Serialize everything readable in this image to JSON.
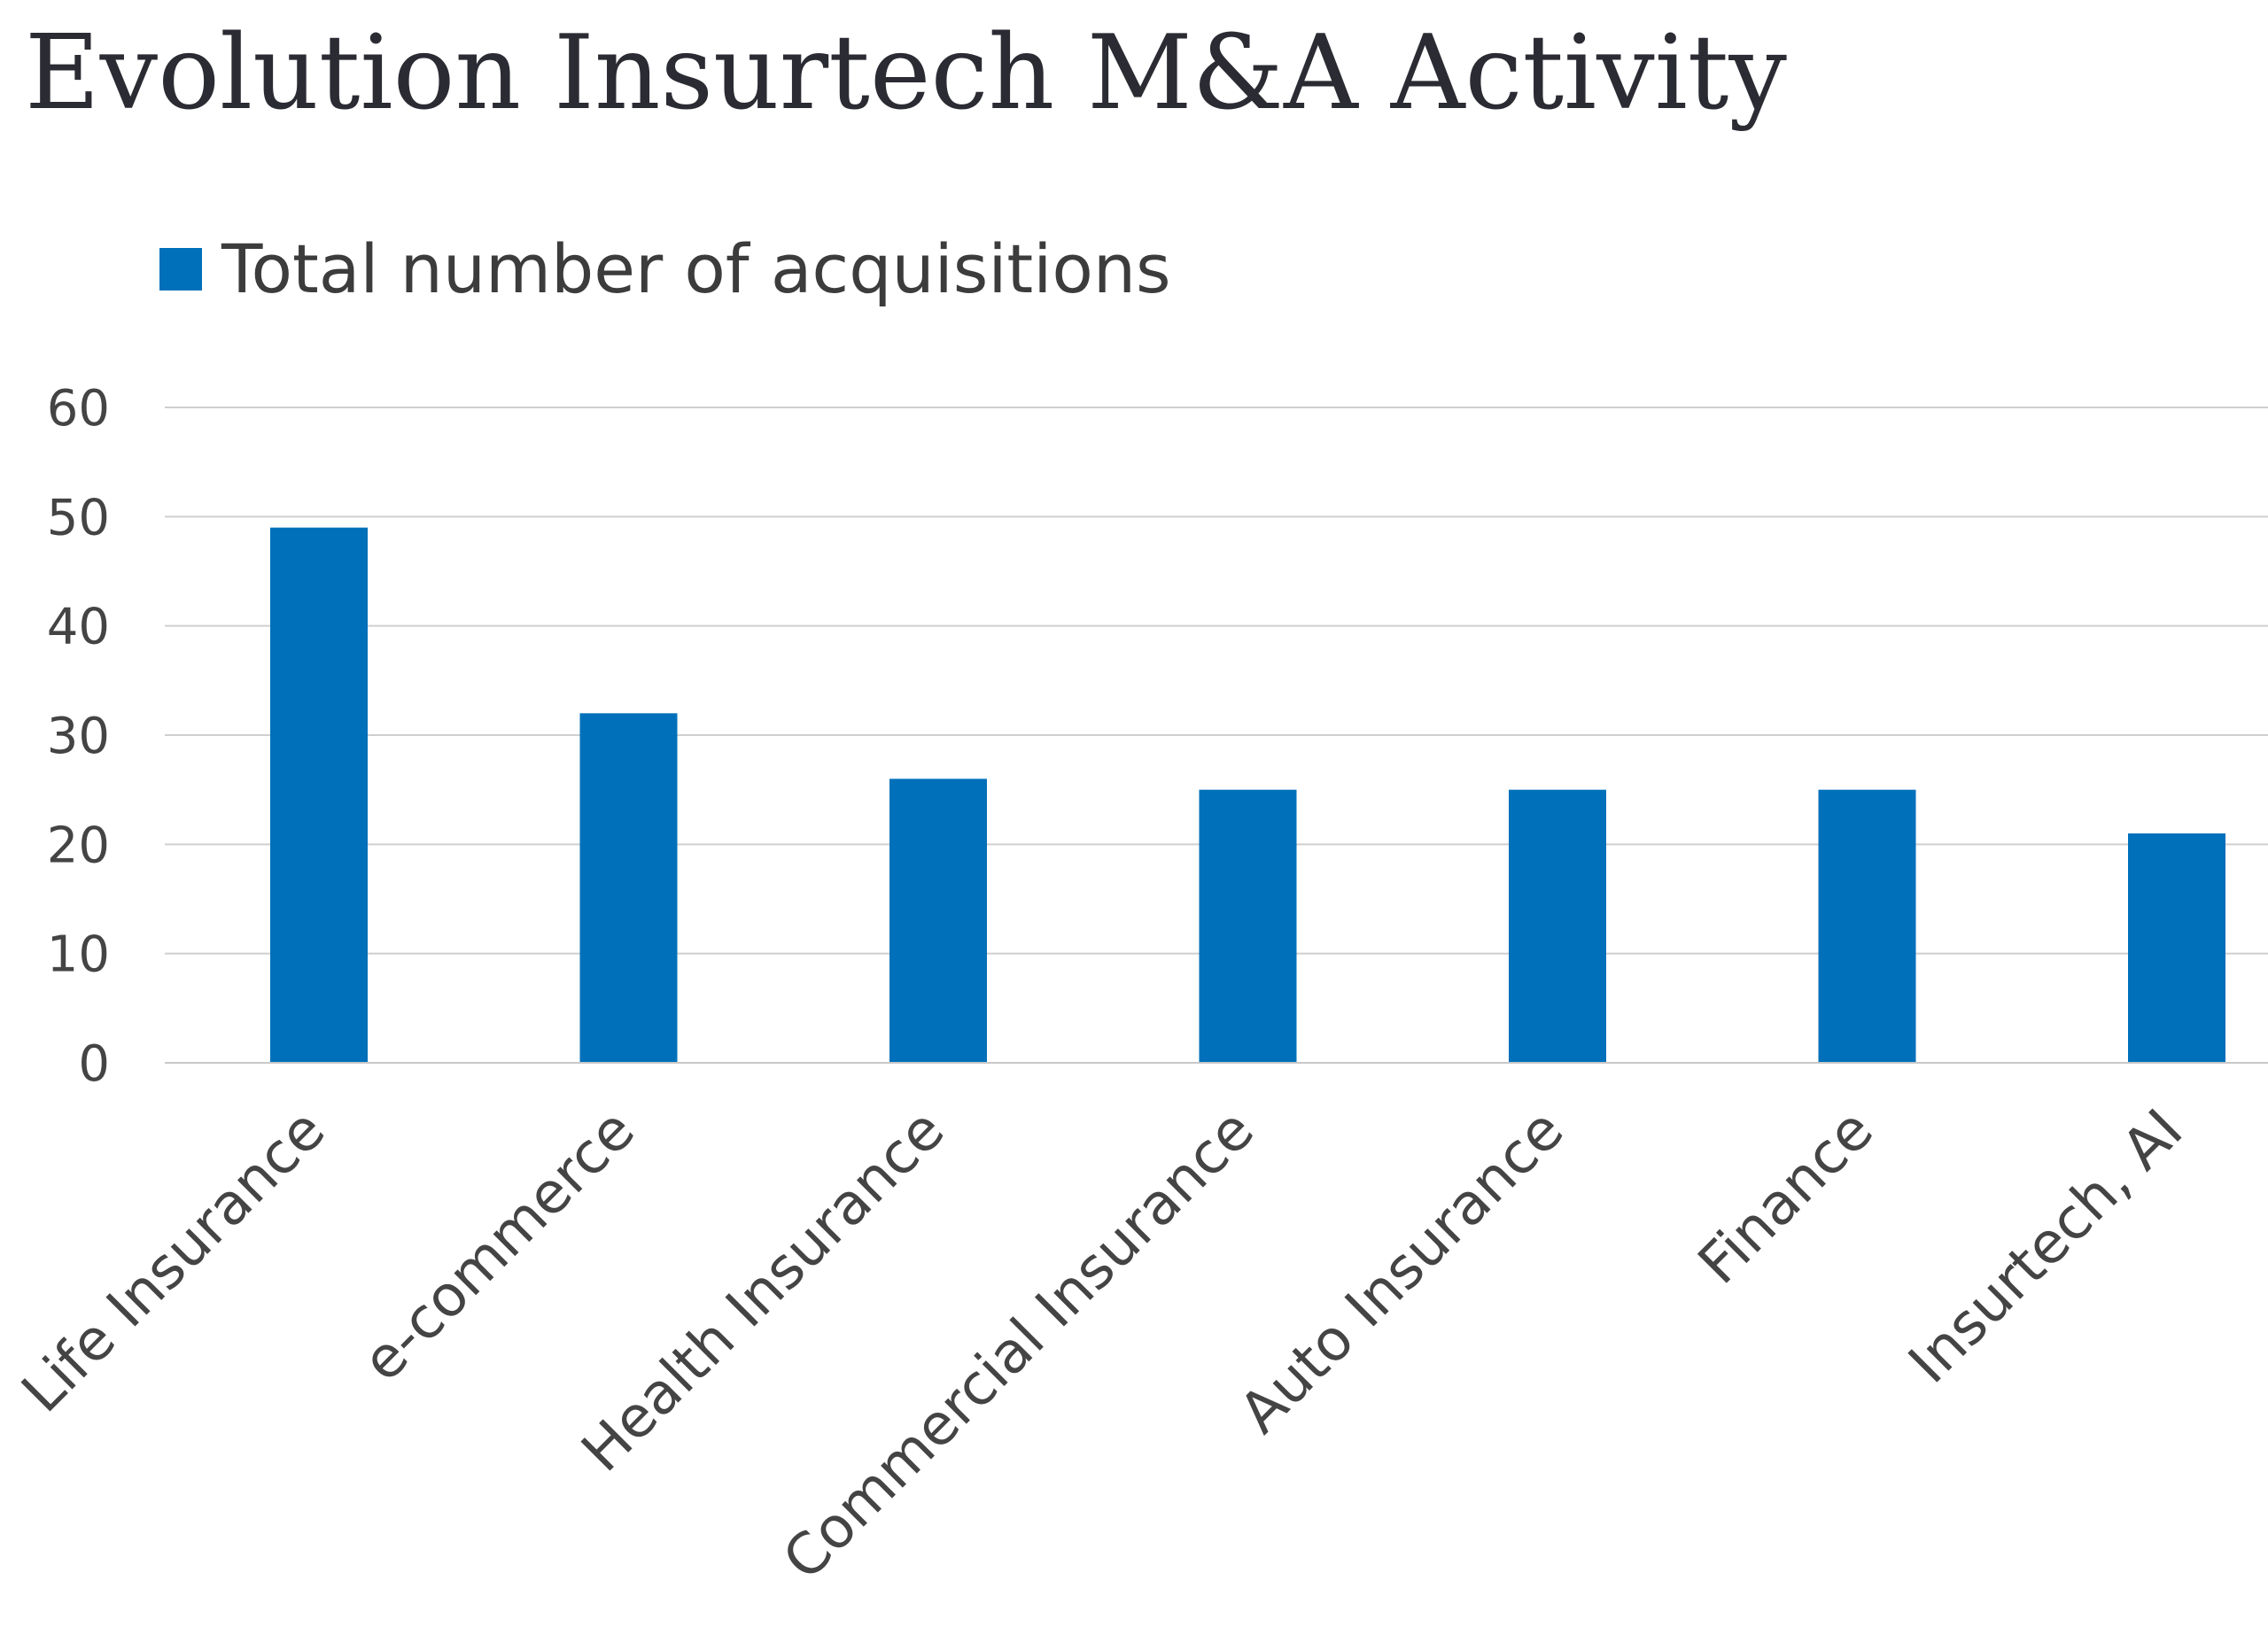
{
  "chart_data": {
    "type": "bar",
    "title": "Evolution Insurtech M&A Activity",
    "categories": [
      "Life Insurance",
      "e-commerce",
      "Health Insurance",
      "Commercial Insurance",
      "Auto Insurance",
      "Finance",
      "Insurtech, AI"
    ],
    "series": [
      {
        "name": "Total number of acquisitions",
        "values": [
          49,
          32,
          26,
          25,
          25,
          25,
          21
        ],
        "color": "#0070ba"
      }
    ],
    "xlabel": "",
    "ylabel": "",
    "ylim": [
      0,
      60
    ],
    "yticks": [
      0,
      10,
      20,
      30,
      40,
      50,
      60
    ],
    "grid": true,
    "legend_position": "top-left"
  }
}
